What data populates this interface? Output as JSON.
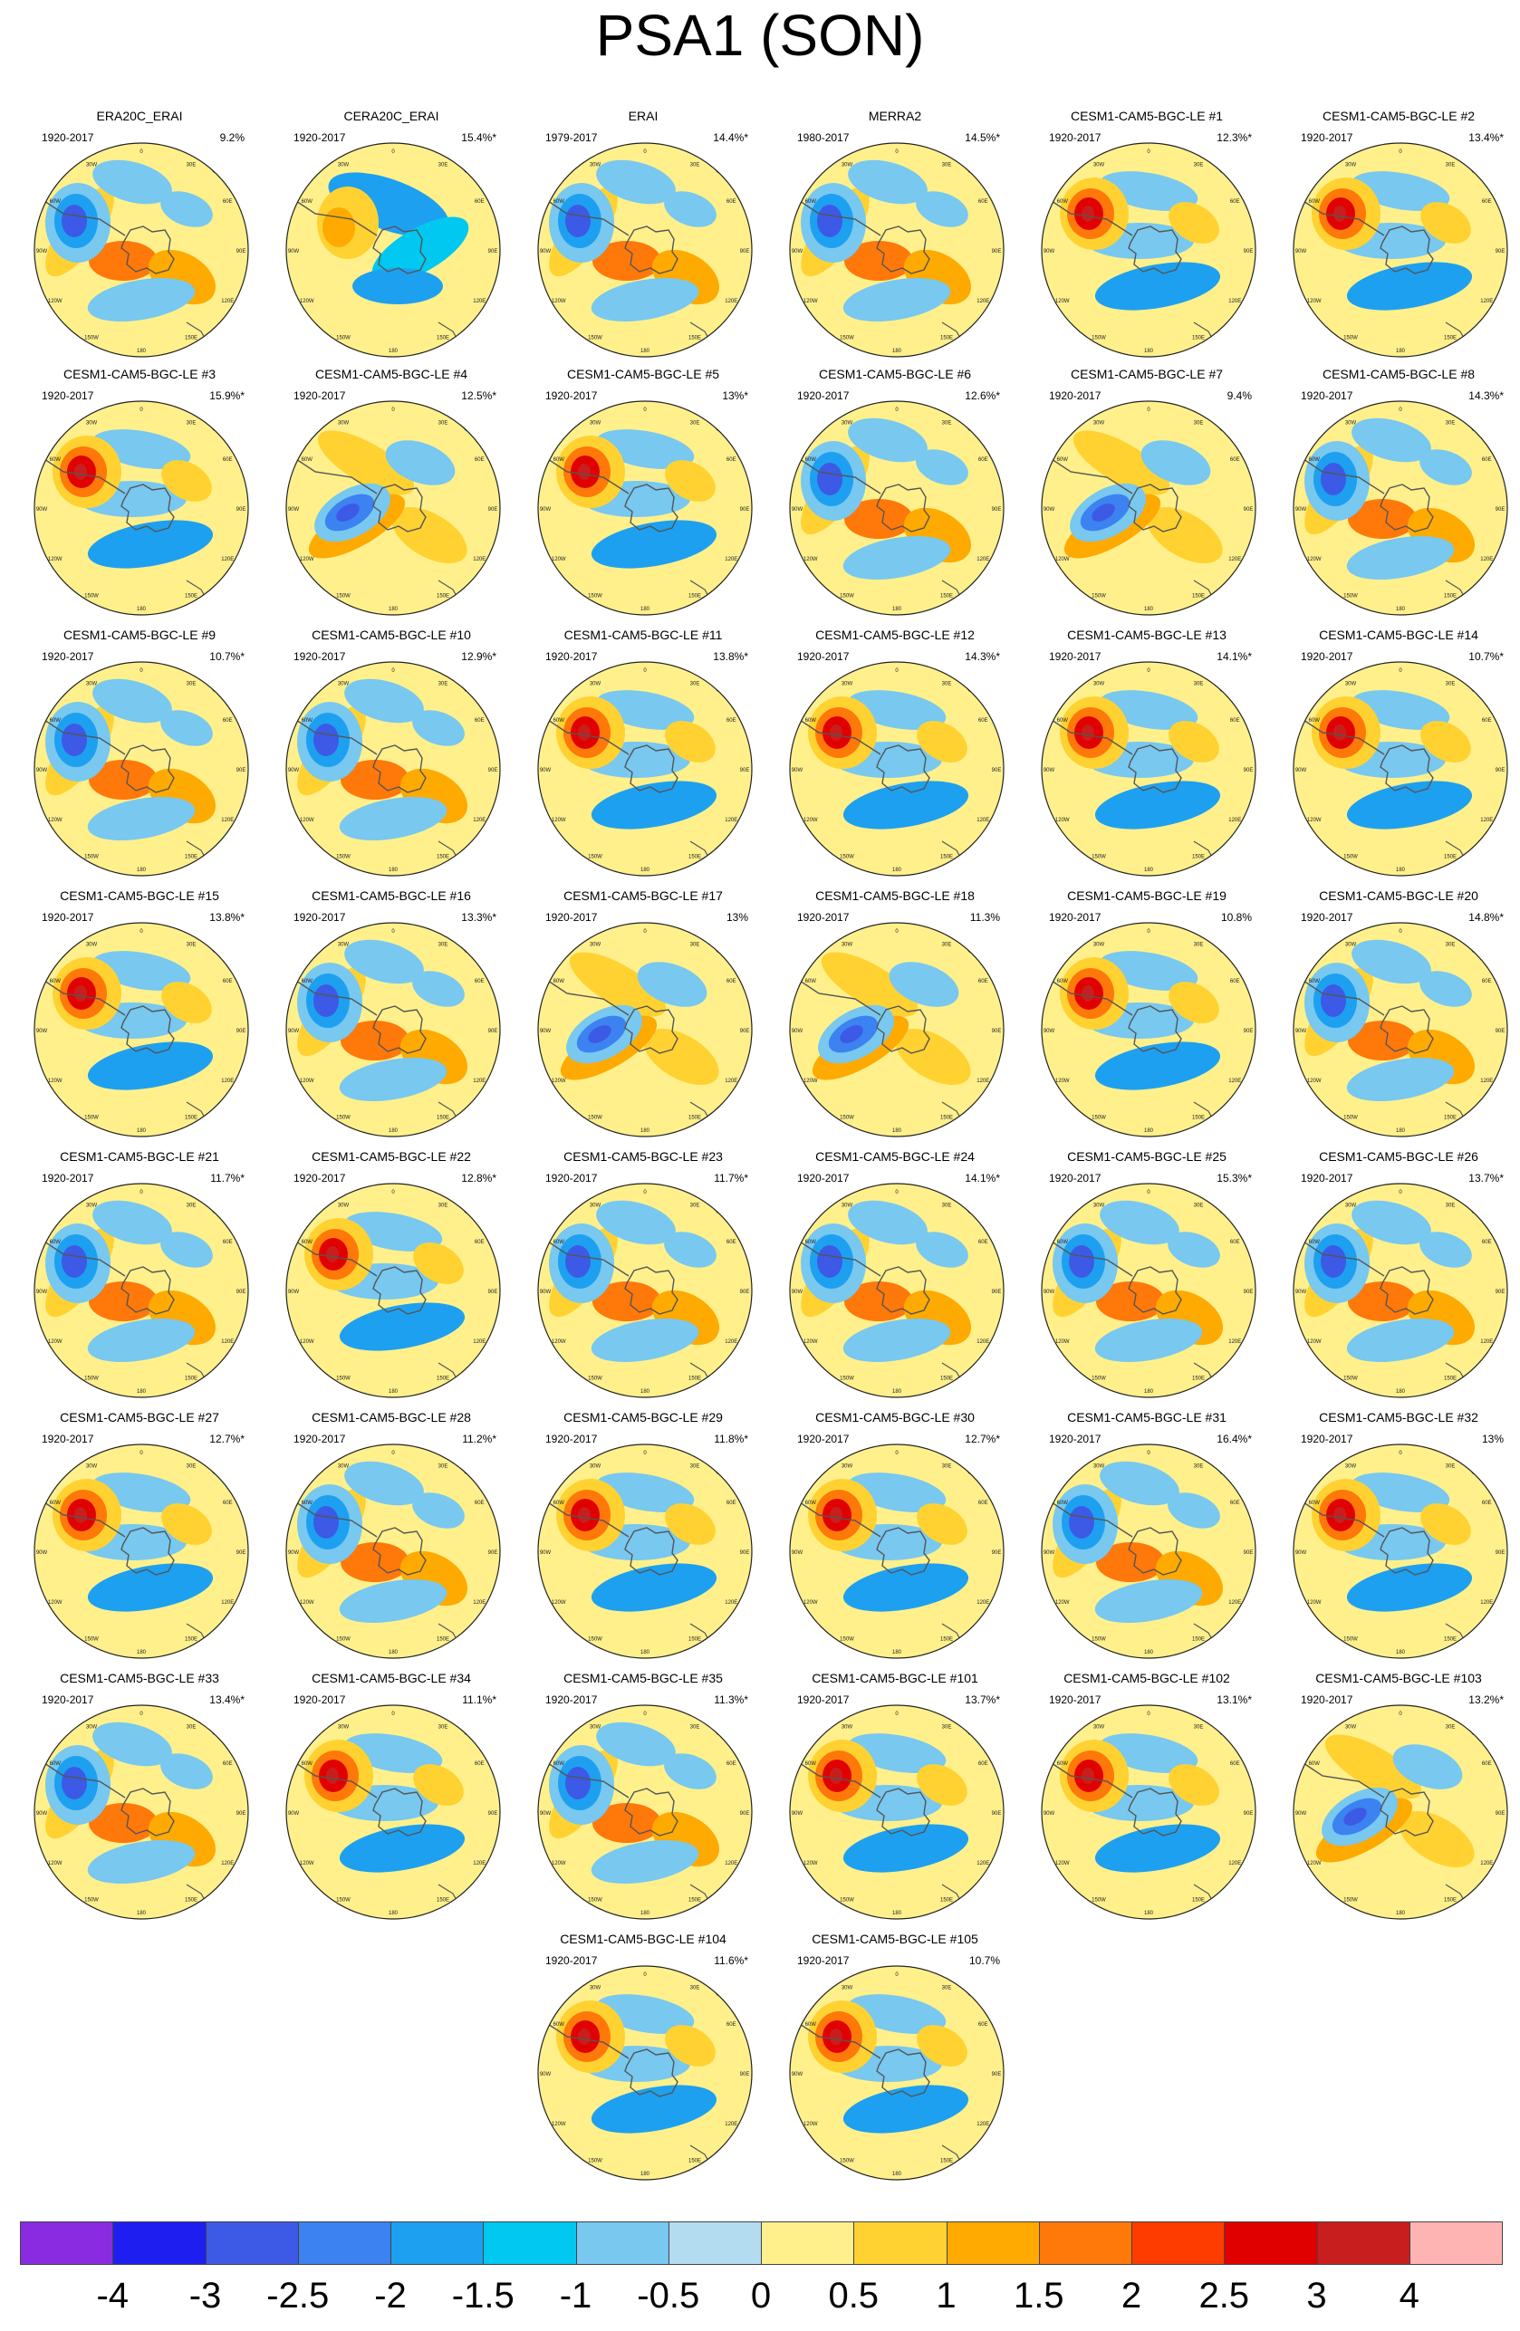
{
  "title": "PSA1 (SON)",
  "panels": [
    {
      "name": "ERA20C_ERAI",
      "period": "1920-2017",
      "pct": "9.2%",
      "pattern": "A"
    },
    {
      "name": "CERA20C_ERAI",
      "period": "1920-2017",
      "pct": "15.4%*",
      "pattern": "B"
    },
    {
      "name": "ERAI",
      "period": "1979-2017",
      "pct": "14.4%*",
      "pattern": "A"
    },
    {
      "name": "MERRA2",
      "period": "1980-2017",
      "pct": "14.5%*",
      "pattern": "A"
    },
    {
      "name": "CESM1-CAM5-BGC-LE #1",
      "period": "1920-2017",
      "pct": "12.3%*",
      "pattern": "C"
    },
    {
      "name": "CESM1-CAM5-BGC-LE #2",
      "period": "1920-2017",
      "pct": "13.4%*",
      "pattern": "C"
    },
    {
      "name": "CESM1-CAM5-BGC-LE #3",
      "period": "1920-2017",
      "pct": "15.9%*",
      "pattern": "C"
    },
    {
      "name": "CESM1-CAM5-BGC-LE #4",
      "period": "1920-2017",
      "pct": "12.5%*",
      "pattern": "D"
    },
    {
      "name": "CESM1-CAM5-BGC-LE #5",
      "period": "1920-2017",
      "pct": "13%*",
      "pattern": "C"
    },
    {
      "name": "CESM1-CAM5-BGC-LE #6",
      "period": "1920-2017",
      "pct": "12.6%*",
      "pattern": "A"
    },
    {
      "name": "CESM1-CAM5-BGC-LE #7",
      "period": "1920-2017",
      "pct": "9.4%",
      "pattern": "D"
    },
    {
      "name": "CESM1-CAM5-BGC-LE #8",
      "period": "1920-2017",
      "pct": "14.3%*",
      "pattern": "A"
    },
    {
      "name": "CESM1-CAM5-BGC-LE #9",
      "period": "1920-2017",
      "pct": "10.7%*",
      "pattern": "A"
    },
    {
      "name": "CESM1-CAM5-BGC-LE #10",
      "period": "1920-2017",
      "pct": "12.9%*",
      "pattern": "A"
    },
    {
      "name": "CESM1-CAM5-BGC-LE #11",
      "period": "1920-2017",
      "pct": "13.8%*",
      "pattern": "C"
    },
    {
      "name": "CESM1-CAM5-BGC-LE #12",
      "period": "1920-2017",
      "pct": "14.3%*",
      "pattern": "C"
    },
    {
      "name": "CESM1-CAM5-BGC-LE #13",
      "period": "1920-2017",
      "pct": "14.1%*",
      "pattern": "C"
    },
    {
      "name": "CESM1-CAM5-BGC-LE #14",
      "period": "1920-2017",
      "pct": "10.7%*",
      "pattern": "C"
    },
    {
      "name": "CESM1-CAM5-BGC-LE #15",
      "period": "1920-2017",
      "pct": "13.8%*",
      "pattern": "C"
    },
    {
      "name": "CESM1-CAM5-BGC-LE #16",
      "period": "1920-2017",
      "pct": "13.3%*",
      "pattern": "A"
    },
    {
      "name": "CESM1-CAM5-BGC-LE #17",
      "period": "1920-2017",
      "pct": "13%",
      "pattern": "D"
    },
    {
      "name": "CESM1-CAM5-BGC-LE #18",
      "period": "1920-2017",
      "pct": "11.3%",
      "pattern": "D"
    },
    {
      "name": "CESM1-CAM5-BGC-LE #19",
      "period": "1920-2017",
      "pct": "10.8%",
      "pattern": "C"
    },
    {
      "name": "CESM1-CAM5-BGC-LE #20",
      "period": "1920-2017",
      "pct": "14.8%*",
      "pattern": "A"
    },
    {
      "name": "CESM1-CAM5-BGC-LE #21",
      "period": "1920-2017",
      "pct": "11.7%*",
      "pattern": "A"
    },
    {
      "name": "CESM1-CAM5-BGC-LE #22",
      "period": "1920-2017",
      "pct": "12.8%*",
      "pattern": "C"
    },
    {
      "name": "CESM1-CAM5-BGC-LE #23",
      "period": "1920-2017",
      "pct": "11.7%*",
      "pattern": "A"
    },
    {
      "name": "CESM1-CAM5-BGC-LE #24",
      "period": "1920-2017",
      "pct": "14.1%*",
      "pattern": "A"
    },
    {
      "name": "CESM1-CAM5-BGC-LE #25",
      "period": "1920-2017",
      "pct": "15.3%*",
      "pattern": "A"
    },
    {
      "name": "CESM1-CAM5-BGC-LE #26",
      "period": "1920-2017",
      "pct": "13.7%*",
      "pattern": "A"
    },
    {
      "name": "CESM1-CAM5-BGC-LE #27",
      "period": "1920-2017",
      "pct": "12.7%*",
      "pattern": "C"
    },
    {
      "name": "CESM1-CAM5-BGC-LE #28",
      "period": "1920-2017",
      "pct": "11.2%*",
      "pattern": "A"
    },
    {
      "name": "CESM1-CAM5-BGC-LE #29",
      "period": "1920-2017",
      "pct": "11.8%*",
      "pattern": "C"
    },
    {
      "name": "CESM1-CAM5-BGC-LE #30",
      "period": "1920-2017",
      "pct": "12.7%*",
      "pattern": "C"
    },
    {
      "name": "CESM1-CAM5-BGC-LE #31",
      "period": "1920-2017",
      "pct": "16.4%*",
      "pattern": "A"
    },
    {
      "name": "CESM1-CAM5-BGC-LE #32",
      "period": "1920-2017",
      "pct": "13%",
      "pattern": "C"
    },
    {
      "name": "CESM1-CAM5-BGC-LE #33",
      "period": "1920-2017",
      "pct": "13.4%*",
      "pattern": "A"
    },
    {
      "name": "CESM1-CAM5-BGC-LE #34",
      "period": "1920-2017",
      "pct": "11.1%*",
      "pattern": "C"
    },
    {
      "name": "CESM1-CAM5-BGC-LE #35",
      "period": "1920-2017",
      "pct": "11.3%*",
      "pattern": "A"
    },
    {
      "name": "CESM1-CAM5-BGC-LE #101",
      "period": "1920-2017",
      "pct": "13.7%*",
      "pattern": "C"
    },
    {
      "name": "CESM1-CAM5-BGC-LE #102",
      "period": "1920-2017",
      "pct": "13.1%*",
      "pattern": "C"
    },
    {
      "name": "CESM1-CAM5-BGC-LE #103",
      "period": "1920-2017",
      "pct": "13.2%*",
      "pattern": "D"
    },
    {
      "name": "CESM1-CAM5-BGC-LE #104",
      "period": "1920-2017",
      "pct": "11.6%*",
      "pattern": "C"
    },
    {
      "name": "CESM1-CAM5-BGC-LE #105",
      "period": "1920-2017",
      "pct": "10.7%",
      "pattern": "C"
    }
  ],
  "map_labels": [
    "0",
    "30E",
    "60E",
    "90E",
    "120E",
    "150E",
    "180",
    "150W",
    "120W",
    "90W",
    "60W",
    "30W"
  ],
  "colorbar": {
    "colors": [
      "#8a2be2",
      "#1e1ef0",
      "#3c5ae6",
      "#3c82f0",
      "#1ea0f0",
      "#00c8f0",
      "#78c8f0",
      "#b4dcf0",
      "#fff08c",
      "#ffd232",
      "#ffaa00",
      "#ff780a",
      "#ff3c00",
      "#e10000",
      "#c81e1e",
      "#ffb4b4"
    ],
    "labels": [
      "-4",
      "-3",
      "-2.5",
      "-2",
      "-1.5",
      "-1",
      "-0.5",
      "0",
      "0.5",
      "1",
      "1.5",
      "2",
      "2.5",
      "3",
      "4"
    ]
  }
}
